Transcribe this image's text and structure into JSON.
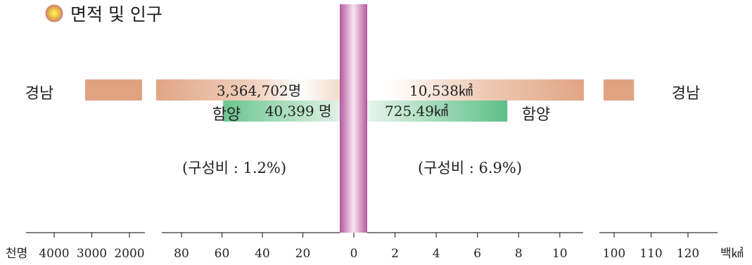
{
  "chart_data": {
    "type": "bar",
    "title": "면적 및 인구",
    "left_panel": {
      "quantity": "population",
      "unit_label": "천명",
      "far_axis_ticks": [
        "4000",
        "3000",
        "2000"
      ],
      "near_axis_ticks": [
        "80",
        "60",
        "40",
        "20",
        "0"
      ]
    },
    "right_panel": {
      "quantity": "area",
      "unit_label": "백㎢",
      "near_axis_ticks": [
        "0",
        "2",
        "4",
        "6",
        "8",
        "10"
      ],
      "far_axis_ticks": [
        "100",
        "110",
        "120"
      ]
    },
    "series": [
      {
        "name": "경남",
        "population_label": "3,364,702명",
        "population_thousand": 3364.702,
        "area_label": "10,538㎢",
        "area_hundred_km2": 105.38,
        "color": "#e0a382"
      },
      {
        "name": "함양",
        "population_label": "40,399 명",
        "population_thousand": 40.399,
        "area_label": "725.49㎢",
        "area_hundred_km2": 7.2549,
        "color": "#5cbf86"
      }
    ],
    "ratios": {
      "population": "(구성비 : 1.2%)",
      "area": "(구성비 : 6.9%)"
    },
    "colors": {
      "center_band": "#c070b0",
      "title_dot_inner": "#f5d23a",
      "title_dot_outer": "#d08070"
    }
  }
}
